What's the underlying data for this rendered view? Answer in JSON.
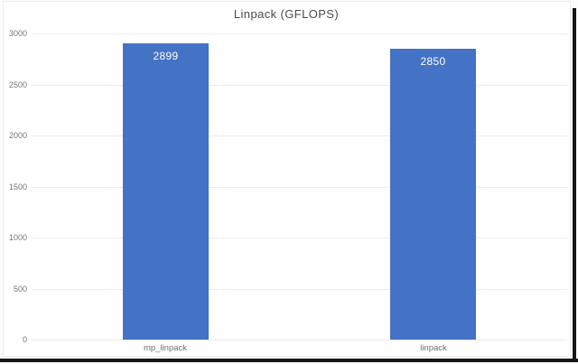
{
  "chart_data": {
    "type": "bar",
    "title": "Linpack (GFLOPS)",
    "categories": [
      "mp_linpack",
      "linpack"
    ],
    "values": [
      2899,
      2850
    ],
    "data_labels": [
      "2899",
      "2850"
    ],
    "xlabel": "",
    "ylabel": "",
    "ylim": [
      0,
      3000
    ],
    "yticks": [
      0,
      500,
      1000,
      1500,
      2000,
      2500,
      3000
    ],
    "grid": true,
    "legend_position": "none",
    "bar_color": "#4472c4",
    "data_label_color": "#ffffff",
    "gridline_color": "#ebebeb",
    "tick_label_color": "#767676",
    "category_label_color": "#6e6e6e",
    "title_color": "#4a4a4a",
    "plot_background": "#ffffff",
    "frame_border_color": "#ececec",
    "image_edge_color": "#161616"
  }
}
